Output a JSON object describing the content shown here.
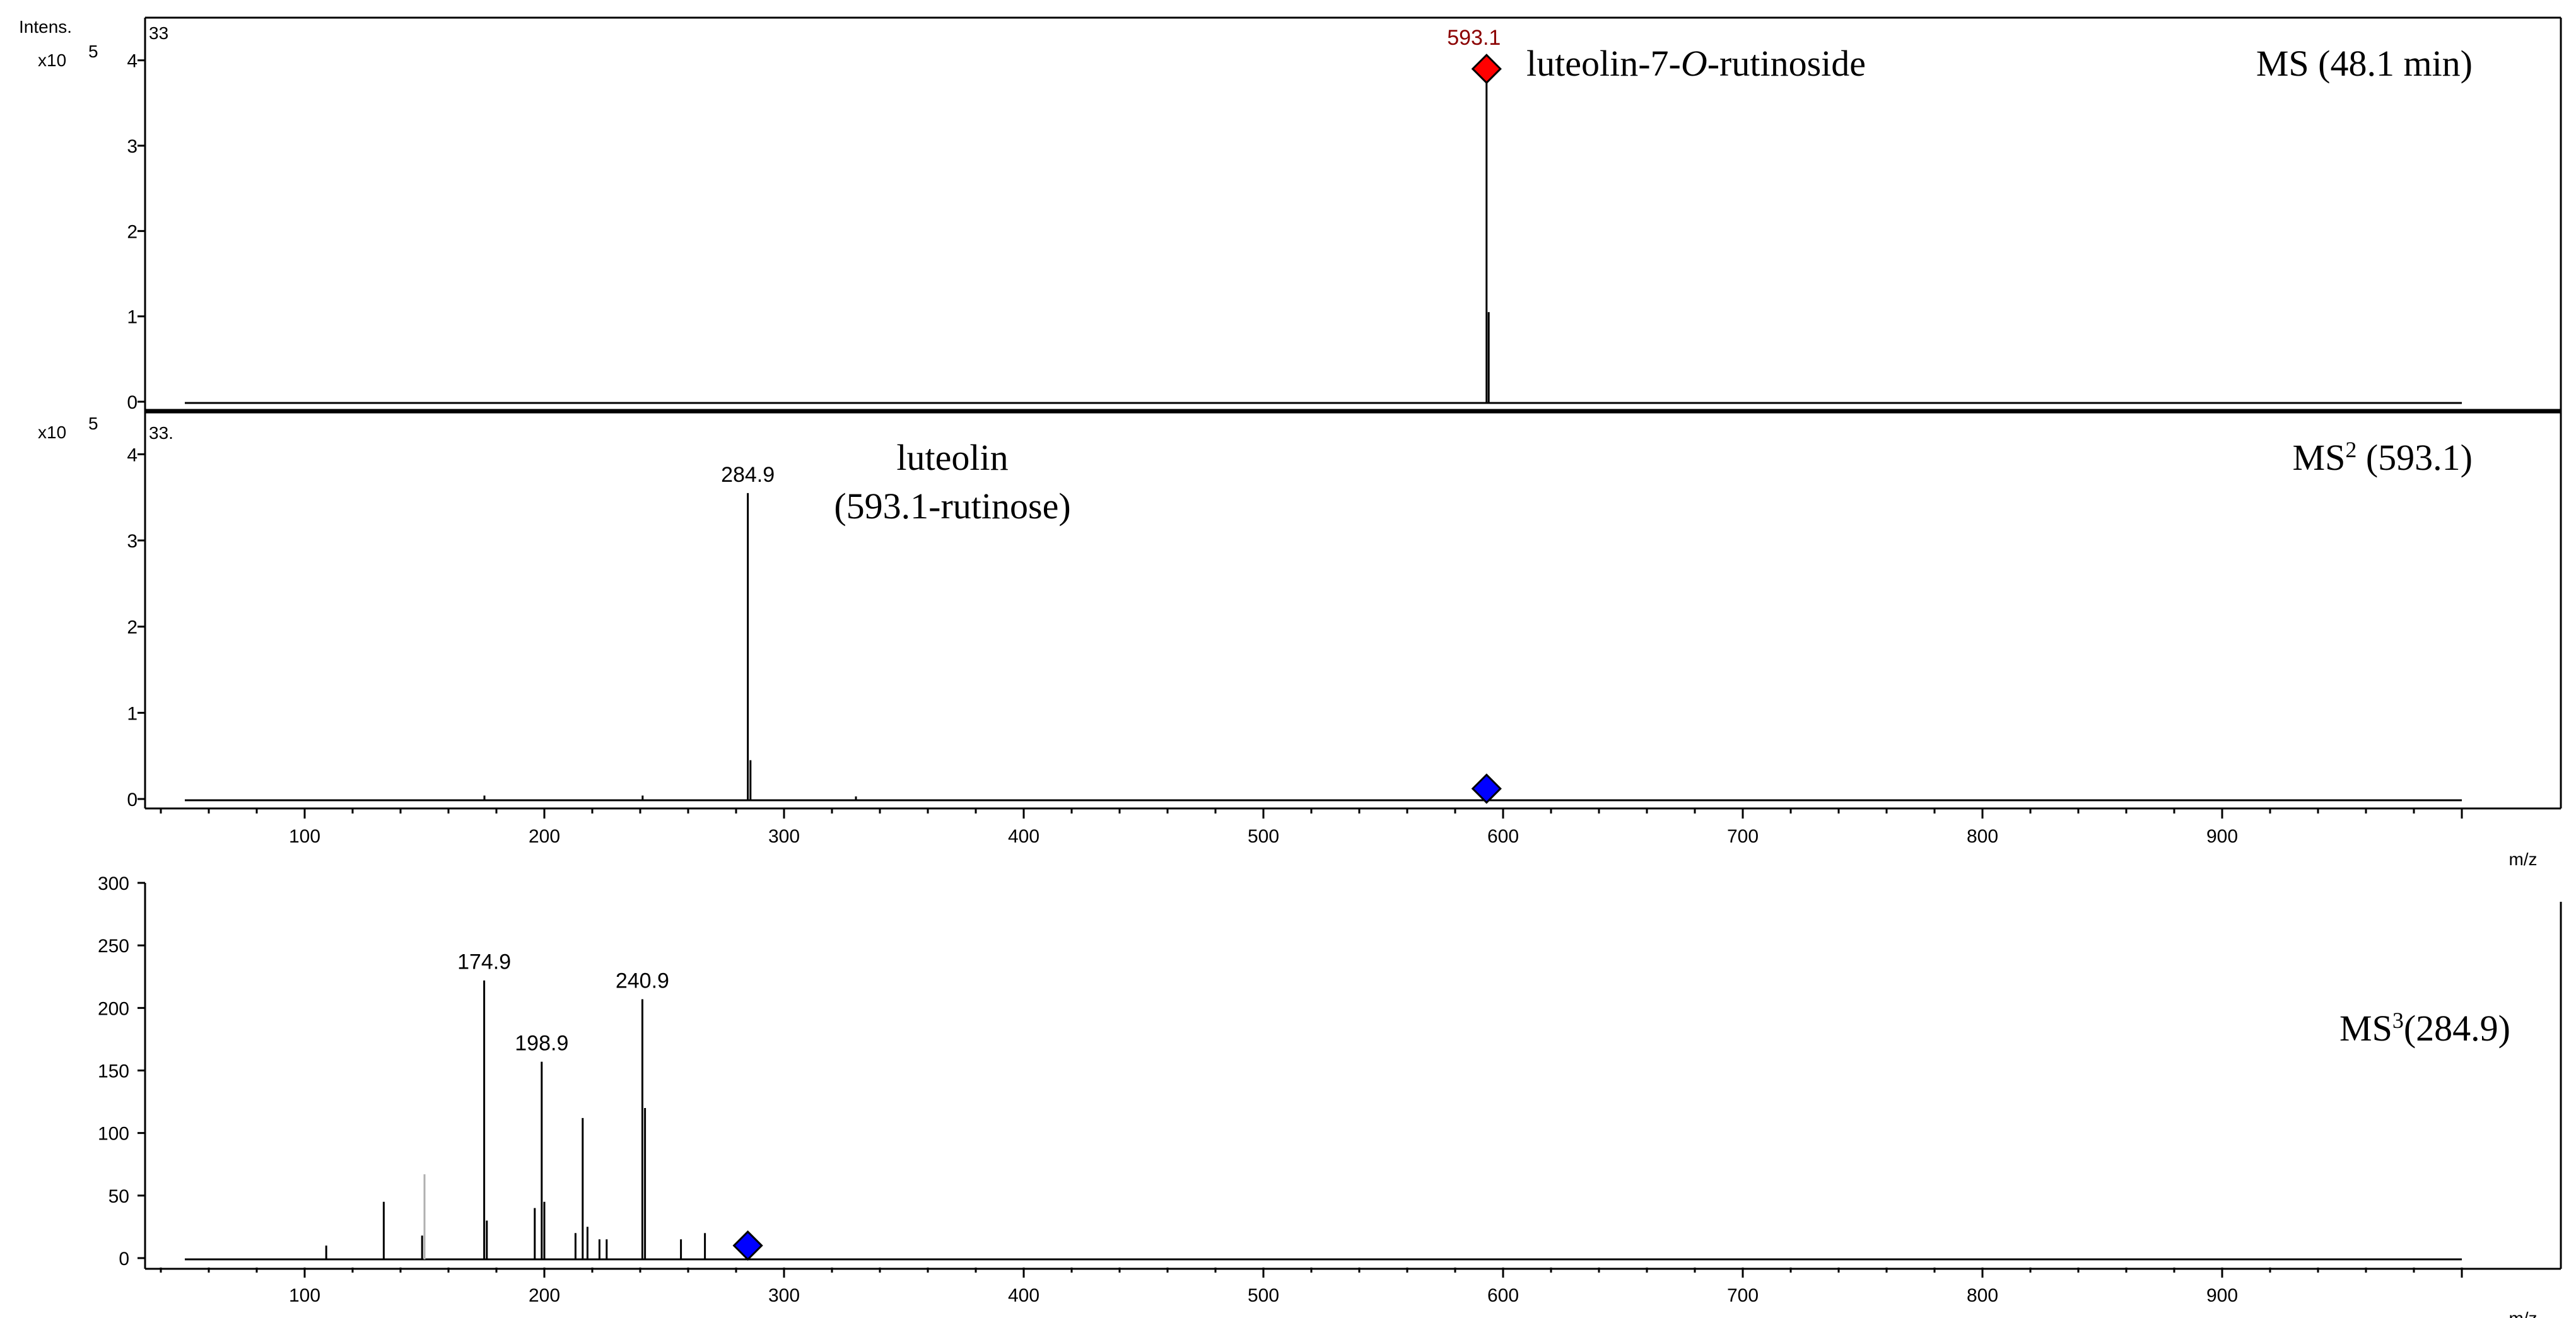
{
  "chart_data": [
    {
      "type": "line",
      "panel": "MS",
      "title": "MS (48.1 min)",
      "annotation": "luteolin-7-O-rutinoside",
      "ylabel": "Intens.",
      "y_exponent_label": "x10",
      "y_exponent": "5",
      "corner_label": "33",
      "xlim": [
        0,
        1000
      ],
      "ylim": [
        0,
        4.5
      ],
      "yticks": [
        0,
        1,
        2,
        3,
        4
      ],
      "precursor_marker": {
        "x": 593.1,
        "y": 3.9,
        "color": "#ff0000",
        "label": "593.1"
      },
      "peaks": [
        {
          "x": 593.1,
          "y": 3.75,
          "label": "593.1"
        },
        {
          "x": 594.0,
          "y": 1.05
        }
      ]
    },
    {
      "type": "line",
      "panel": "MS2",
      "title": "MS",
      "title_superscript": "2",
      "title_suffix": " (593.1)",
      "annotation": "luteolin",
      "annotation_line2": "(593.1-rutinose)",
      "y_exponent_label": "x10",
      "y_exponent": "5",
      "corner_label": "33.",
      "xlim": [
        0,
        1000
      ],
      "ylim": [
        0,
        4.5
      ],
      "yticks": [
        0,
        1,
        2,
        3,
        4
      ],
      "xticks": [
        100,
        200,
        300,
        400,
        500,
        600,
        700,
        800,
        900
      ],
      "xlabel": "m/z",
      "precursor_marker": {
        "x": 593.1,
        "y": 0.12,
        "color": "#0000ff"
      },
      "peaks": [
        {
          "x": 284.9,
          "y": 3.55,
          "label": "284.9"
        },
        {
          "x": 286.0,
          "y": 0.45
        },
        {
          "x": 175,
          "y": 0.04
        },
        {
          "x": 241,
          "y": 0.04
        },
        {
          "x": 330,
          "y": 0.03
        }
      ]
    },
    {
      "type": "line",
      "panel": "MS3",
      "title": "MS",
      "title_superscript": "3",
      "title_suffix": "(284.9)",
      "xlim": [
        0,
        1000
      ],
      "ylim": [
        0,
        300
      ],
      "yticks": [
        0,
        50,
        100,
        150,
        200,
        250,
        300
      ],
      "xticks": [
        100,
        200,
        300,
        400,
        500,
        600,
        700,
        800,
        900
      ],
      "xlabel": "m/z",
      "precursor_marker": {
        "x": 284.9,
        "y": 10,
        "color": "#0000ff"
      },
      "peaks": [
        {
          "x": 109,
          "y": 10
        },
        {
          "x": 133,
          "y": 45
        },
        {
          "x": 149,
          "y": 18
        },
        {
          "x": 150,
          "y": 67,
          "gray": true
        },
        {
          "x": 174.9,
          "y": 222,
          "label": "174.9"
        },
        {
          "x": 176,
          "y": 30
        },
        {
          "x": 196,
          "y": 40
        },
        {
          "x": 198.9,
          "y": 157,
          "label": "198.9"
        },
        {
          "x": 200,
          "y": 45
        },
        {
          "x": 213,
          "y": 20
        },
        {
          "x": 216,
          "y": 112
        },
        {
          "x": 218,
          "y": 25
        },
        {
          "x": 223,
          "y": 15
        },
        {
          "x": 226,
          "y": 15
        },
        {
          "x": 240.9,
          "y": 207,
          "label": "240.9"
        },
        {
          "x": 242,
          "y": 120
        },
        {
          "x": 257,
          "y": 15
        },
        {
          "x": 267,
          "y": 20
        }
      ]
    }
  ]
}
